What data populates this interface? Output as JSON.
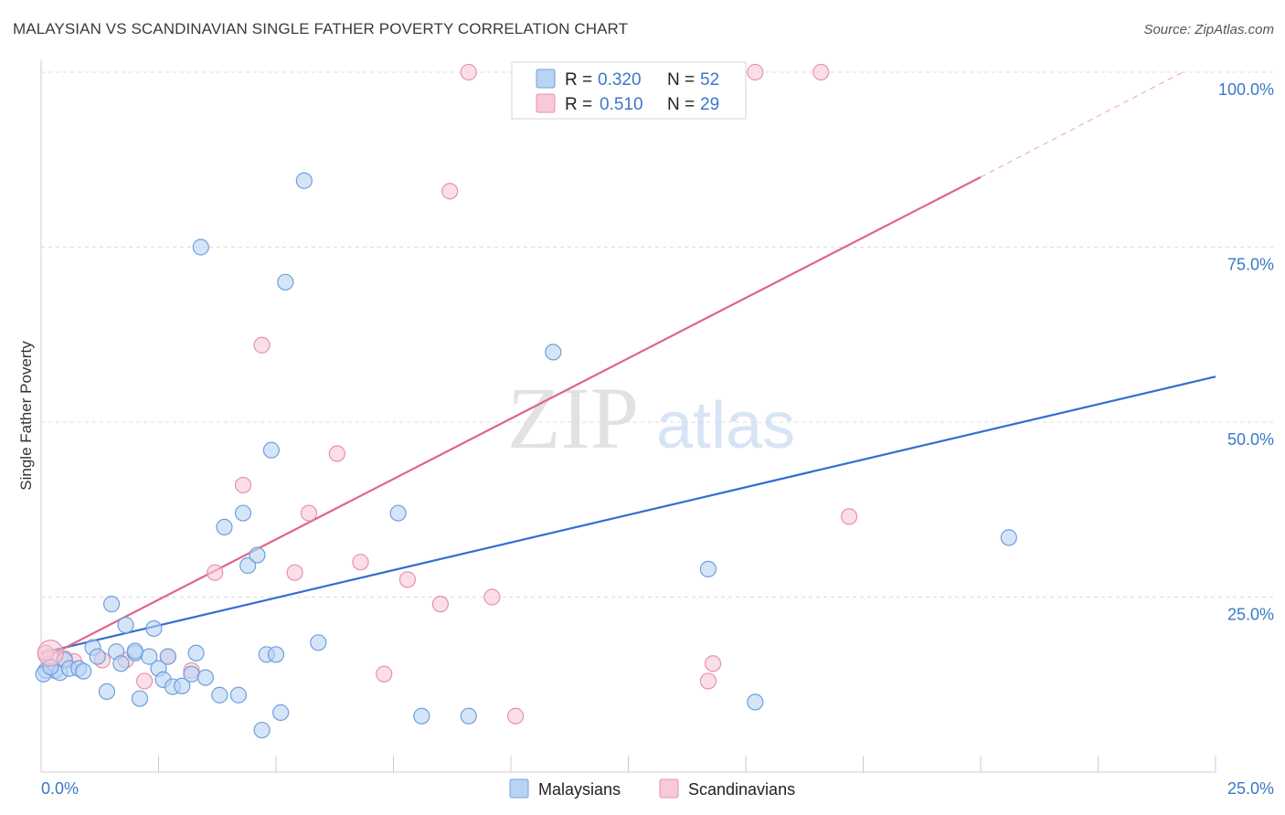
{
  "title": "MALAYSIAN VS SCANDINAVIAN SINGLE FATHER POVERTY CORRELATION CHART",
  "source": "Source: ZipAtlas.com",
  "watermark": {
    "zip": "ZIP",
    "atlas": "atlas"
  },
  "colors": {
    "blue_fill": "#b9d3f4",
    "blue_stroke": "#6f9fdc",
    "blue_line": "#2f6fd0",
    "pink_fill": "#f8c9d6",
    "pink_stroke": "#e891ab",
    "pink_line": "#e0648e",
    "grid": "#dddddd",
    "tick_text": "#3a78c9"
  },
  "legend": {
    "rows": [
      {
        "r_label": "R =",
        "r_value": "0.320",
        "n_label": "N =",
        "n_value": "52"
      },
      {
        "r_label": "R =",
        "r_value": "0.510",
        "n_label": "N =",
        "n_value": "29"
      }
    ]
  },
  "bottom_legend": [
    "Malaysians",
    "Scandinavians"
  ],
  "chart_data": {
    "type": "scatter",
    "title": "MALAYSIAN VS SCANDINAVIAN SINGLE FATHER POVERTY CORRELATION CHART",
    "xlabel": "",
    "ylabel": "Single Father Poverty",
    "xlim": [
      0,
      25
    ],
    "ylim": [
      0,
      100
    ],
    "x_tick_labels": [
      "0.0%",
      "25.0%"
    ],
    "y_tick_labels": [
      "25.0%",
      "50.0%",
      "75.0%",
      "100.0%"
    ],
    "y_ticks": [
      25,
      50,
      75,
      100
    ],
    "grid": true,
    "legend_position": "top-center",
    "series": [
      {
        "name": "Malaysians",
        "points": [
          [
            0.1,
            14.5
          ],
          [
            0.3,
            14.5
          ],
          [
            0.4,
            14.2
          ],
          [
            0.5,
            16.0
          ],
          [
            0.6,
            14.8
          ],
          [
            0.8,
            14.8
          ],
          [
            0.9,
            14.4
          ],
          [
            1.1,
            17.8
          ],
          [
            1.2,
            16.5
          ],
          [
            1.4,
            11.5
          ],
          [
            1.5,
            24.0
          ],
          [
            1.6,
            17.2
          ],
          [
            1.7,
            15.5
          ],
          [
            1.8,
            21.0
          ],
          [
            2.0,
            17.0
          ],
          [
            2.0,
            17.3
          ],
          [
            2.1,
            10.5
          ],
          [
            2.3,
            16.5
          ],
          [
            2.4,
            20.5
          ],
          [
            2.5,
            14.8
          ],
          [
            2.6,
            13.2
          ],
          [
            2.7,
            16.5
          ],
          [
            2.8,
            12.2
          ],
          [
            3.0,
            12.3
          ],
          [
            3.2,
            14.0
          ],
          [
            3.3,
            17.0
          ],
          [
            3.5,
            13.5
          ],
          [
            3.4,
            75.0
          ],
          [
            3.8,
            11.0
          ],
          [
            3.9,
            35.0
          ],
          [
            4.2,
            11.0
          ],
          [
            4.3,
            37.0
          ],
          [
            4.4,
            29.5
          ],
          [
            4.6,
            31.0
          ],
          [
            4.7,
            6.0
          ],
          [
            4.8,
            16.8
          ],
          [
            4.9,
            46.0
          ],
          [
            5.0,
            16.8
          ],
          [
            5.1,
            8.5
          ],
          [
            5.2,
            70.0
          ],
          [
            5.6,
            84.5
          ],
          [
            5.9,
            18.5
          ],
          [
            7.6,
            37.0
          ],
          [
            8.1,
            8.0
          ],
          [
            9.1,
            8.0
          ],
          [
            10.4,
            100.0
          ],
          [
            10.9,
            60.0
          ],
          [
            14.2,
            29.0
          ],
          [
            15.2,
            10.0
          ],
          [
            20.6,
            33.5
          ],
          [
            0.05,
            14.0
          ],
          [
            0.2,
            15.0
          ]
        ]
      },
      {
        "name": "Scandinavians",
        "points": [
          [
            0.2,
            16.5
          ],
          [
            0.7,
            15.8
          ],
          [
            1.3,
            16.0
          ],
          [
            1.8,
            16.0
          ],
          [
            2.2,
            13.0
          ],
          [
            2.7,
            16.5
          ],
          [
            3.2,
            14.5
          ],
          [
            3.7,
            28.5
          ],
          [
            4.3,
            41.0
          ],
          [
            4.7,
            61.0
          ],
          [
            5.4,
            28.5
          ],
          [
            5.7,
            37.0
          ],
          [
            6.3,
            45.5
          ],
          [
            6.8,
            30.0
          ],
          [
            7.3,
            14.0
          ],
          [
            7.8,
            27.5
          ],
          [
            8.5,
            24.0
          ],
          [
            8.7,
            83.0
          ],
          [
            9.1,
            100.0
          ],
          [
            9.6,
            25.0
          ],
          [
            10.1,
            8.0
          ],
          [
            11.0,
            100.0
          ],
          [
            14.2,
            13.0
          ],
          [
            14.3,
            15.5
          ],
          [
            15.2,
            100.0
          ],
          [
            16.6,
            100.0
          ],
          [
            17.2,
            36.5
          ],
          [
            0.1,
            17.0
          ],
          [
            0.5,
            16.2
          ]
        ]
      }
    ],
    "trendlines": [
      {
        "name": "Malaysians",
        "x": [
          0,
          25
        ],
        "y": [
          17.0,
          56.5
        ]
      },
      {
        "name": "Scandinavians",
        "x": [
          0,
          20
        ],
        "y": [
          16.0,
          85.0
        ],
        "dashed_extension": {
          "x": [
            20,
            24.3
          ],
          "y": [
            85.0,
            100.0
          ]
        }
      }
    ]
  }
}
